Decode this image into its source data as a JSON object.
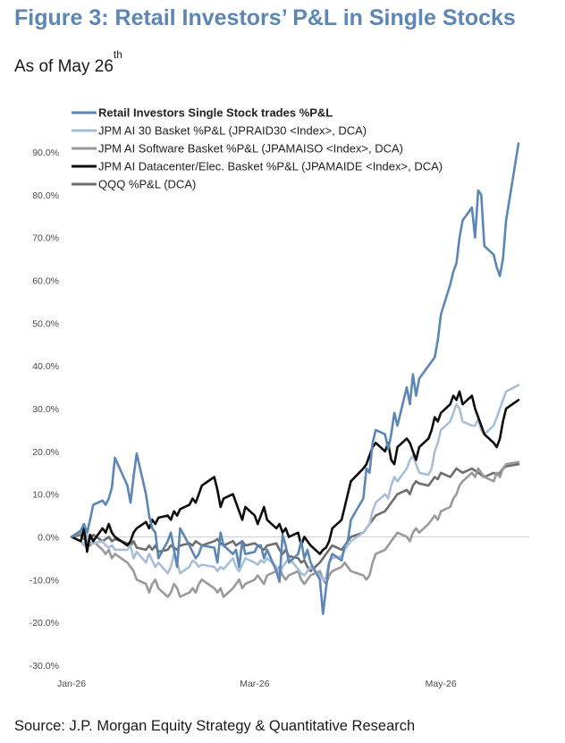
{
  "title": "Figure 3: Retail Investors’ P&L in Single Stocks",
  "subtitle": "As of May 26",
  "subtitle_sup": "th",
  "source": "Source: J.P. Morgan Equity Strategy & Quantitative Research",
  "chart_data": {
    "type": "line",
    "x": [
      "2026-01-02",
      "2026-01-05",
      "2026-01-06",
      "2026-01-07",
      "2026-01-08",
      "2026-01-09",
      "2026-01-12",
      "2026-01-13",
      "2026-01-14",
      "2026-01-15",
      "2026-01-16",
      "2026-01-20",
      "2026-01-21",
      "2026-01-22",
      "2026-01-23",
      "2026-01-26",
      "2026-01-27",
      "2026-01-28",
      "2026-01-29",
      "2026-01-30",
      "2026-02-02",
      "2026-02-03",
      "2026-02-04",
      "2026-02-05",
      "2026-02-06",
      "2026-02-09",
      "2026-02-10",
      "2026-02-11",
      "2026-02-12",
      "2026-02-13",
      "2026-02-17",
      "2026-02-18",
      "2026-02-19",
      "2026-02-20",
      "2026-02-23",
      "2026-02-24",
      "2026-02-25",
      "2026-02-26",
      "2026-02-27",
      "2026-03-02",
      "2026-03-03",
      "2026-03-04",
      "2026-03-05",
      "2026-03-06",
      "2026-03-09",
      "2026-03-10",
      "2026-03-11",
      "2026-03-12",
      "2026-03-13",
      "2026-03-16",
      "2026-03-17",
      "2026-03-18",
      "2026-03-19",
      "2026-03-20",
      "2026-03-23",
      "2026-03-24",
      "2026-03-25",
      "2026-03-26",
      "2026-03-27",
      "2026-03-30",
      "2026-03-31",
      "2026-04-01",
      "2026-04-02",
      "2026-04-06",
      "2026-04-07",
      "2026-04-08",
      "2026-04-09",
      "2026-04-10",
      "2026-04-13",
      "2026-04-14",
      "2026-04-15",
      "2026-04-16",
      "2026-04-17",
      "2026-04-20",
      "2026-04-21",
      "2026-04-22",
      "2026-04-23",
      "2026-04-24",
      "2026-04-27",
      "2026-04-28",
      "2026-04-29",
      "2026-04-30",
      "2026-05-01",
      "2026-05-04",
      "2026-05-05",
      "2026-05-06",
      "2026-05-07",
      "2026-05-08",
      "2026-05-11",
      "2026-05-12",
      "2026-05-13",
      "2026-05-14",
      "2026-05-15",
      "2026-05-18",
      "2026-05-19",
      "2026-05-20",
      "2026-05-21",
      "2026-05-22",
      "2026-05-26"
    ],
    "series": [
      {
        "name": "Retail Investors Single Stock trades %P&L",
        "color": "#5b86b5",
        "values": [
          0.0,
          1.5,
          3.0,
          1.0,
          4.0,
          7.5,
          8.5,
          7.5,
          9.0,
          11.5,
          18.5,
          12.0,
          8.0,
          14.0,
          19.5,
          10.0,
          5.0,
          2.0,
          1.0,
          -5.0,
          -1.0,
          1.0,
          -3.0,
          -7.0,
          2.0,
          -2.0,
          -3.5,
          -5.0,
          -4.0,
          -2.0,
          -2.5,
          -6.0,
          1.0,
          -2.0,
          -4.0,
          -3.0,
          -7.0,
          -1.0,
          -4.0,
          -3.5,
          -2.0,
          -2.0,
          -5.0,
          -3.0,
          -8.0,
          -10.5,
          0.5,
          -2.0,
          -6.0,
          -4.0,
          -1.0,
          -5.0,
          -3.0,
          -6.0,
          -10.0,
          -18.0,
          -12.0,
          -6.0,
          -4.0,
          -5.5,
          -2.0,
          -1.0,
          4.0,
          9.0,
          16.0,
          15.0,
          22.0,
          25.0,
          24.0,
          20.5,
          24.0,
          29.0,
          26.0,
          35.0,
          31.0,
          38.0,
          33.0,
          37.0,
          40.0,
          41.0,
          42.0,
          46.0,
          52.0,
          59.0,
          62.0,
          64.0,
          70.0,
          74.0,
          77.0,
          70.0,
          81.0,
          80.0,
          68.0,
          66.0,
          63.0,
          61.0,
          65.0,
          74.0,
          92.0
        ]
      },
      {
        "name": "JPM AI 30 Basket %P&L (JPRAID30 <Index>, DCA)",
        "color": "#a9bfd9",
        "values": [
          0.0,
          -1.0,
          -2.0,
          0.5,
          -1.5,
          -1.5,
          -1.0,
          -2.0,
          -2.5,
          -2.0,
          -3.0,
          -3.0,
          -2.0,
          -5.0,
          -3.5,
          -6.0,
          -4.0,
          -5.5,
          -7.0,
          -6.0,
          -8.5,
          -7.0,
          -4.0,
          -6.0,
          -8.5,
          -7.0,
          -5.5,
          -6.0,
          -7.0,
          -6.5,
          -7.0,
          -8.0,
          -7.0,
          -7.5,
          -5.0,
          -7.0,
          -8.0,
          -6.5,
          -5.0,
          -6.0,
          -6.5,
          -5.5,
          -6.0,
          -5.0,
          -7.0,
          -8.5,
          -7.0,
          -6.0,
          -5.0,
          -7.5,
          -8.5,
          -9.0,
          -8.0,
          -7.0,
          -9.0,
          -10.0,
          -9.5,
          -6.0,
          -5.0,
          -4.5,
          -3.0,
          -2.0,
          -1.0,
          1.0,
          2.0,
          3.0,
          6.0,
          8.0,
          10.0,
          9.0,
          12.0,
          14.0,
          13.0,
          16.0,
          18.0,
          19.0,
          17.0,
          15.0,
          14.5,
          16.0,
          20.0,
          22.0,
          25.0,
          27.0,
          29.0,
          31.0,
          30.0,
          27.0,
          26.0,
          26.0,
          27.5,
          25.0,
          24.0,
          26.0,
          28.0,
          30.0,
          32.0,
          34.0,
          35.5
        ]
      },
      {
        "name": "JPM AI Software Basket %P&L (JPAMAISO <Index>, DCA)",
        "color": "#9a9a9a",
        "values": [
          0.0,
          1.0,
          0.0,
          -1.0,
          -2.0,
          -1.0,
          -3.0,
          -4.0,
          -3.0,
          -5.0,
          -4.0,
          -6.0,
          -7.0,
          -8.0,
          -10.0,
          -11.0,
          -13.0,
          -11.0,
          -10.0,
          -12.0,
          -14.0,
          -13.0,
          -11.0,
          -12.0,
          -14.0,
          -13.0,
          -12.0,
          -13.0,
          -11.0,
          -10.0,
          -12.0,
          -13.0,
          -12.0,
          -14.0,
          -12.0,
          -11.0,
          -10.0,
          -12.0,
          -11.0,
          -10.0,
          -9.0,
          -10.0,
          -11.0,
          -9.0,
          -8.0,
          -7.0,
          -9.0,
          -10.0,
          -9.0,
          -8.0,
          -10.0,
          -11.0,
          -10.0,
          -9.0,
          -8.0,
          -10.0,
          -11.0,
          -9.0,
          -8.0,
          -7.0,
          -6.0,
          -7.0,
          -8.0,
          -9.0,
          -10.0,
          -9.0,
          -6.0,
          -4.0,
          -3.0,
          -2.0,
          -1.0,
          0.0,
          1.0,
          0.0,
          -1.0,
          1.0,
          2.0,
          1.0,
          3.0,
          4.0,
          5.0,
          4.0,
          6.0,
          7.0,
          9.0,
          10.0,
          12.0,
          13.0,
          15.0,
          14.0,
          16.0,
          15.0,
          14.0,
          13.0,
          15.0,
          14.0,
          16.0,
          17.0,
          17.5
        ]
      },
      {
        "name": "JPM AI Datacenter/Elec. Basket %P&L (JPAMAIDE <Index>, DCA)",
        "color": "#0d0d0d",
        "values": [
          0.0,
          -1.0,
          2.0,
          -3.5,
          0.5,
          -1.0,
          2.0,
          1.0,
          3.0,
          1.0,
          0.0,
          -2.0,
          -1.0,
          1.0,
          2.0,
          3.5,
          2.0,
          4.0,
          3.0,
          4.5,
          5.0,
          4.0,
          6.0,
          5.0,
          6.5,
          7.5,
          9.0,
          8.0,
          10.0,
          12.0,
          14.0,
          11.0,
          7.0,
          9.0,
          10.0,
          8.0,
          6.0,
          4.0,
          7.0,
          5.0,
          3.0,
          5.0,
          7.0,
          4.0,
          2.0,
          3.0,
          1.0,
          2.0,
          0.0,
          1.0,
          -2.0,
          0.0,
          -1.0,
          -2.0,
          -4.0,
          -3.0,
          -2.5,
          -1.0,
          2.0,
          4.0,
          7.0,
          10.0,
          13.0,
          16.0,
          17.0,
          19.0,
          21.0,
          22.0,
          20.0,
          22.0,
          18.0,
          17.0,
          21.0,
          23.0,
          22.0,
          20.0,
          18.0,
          21.0,
          23.0,
          25.0,
          28.0,
          27.0,
          29.0,
          31.0,
          33.0,
          32.0,
          34.0,
          31.0,
          33.0,
          30.0,
          28.0,
          26.0,
          24.0,
          22.0,
          21.0,
          23.0,
          27.0,
          30.0,
          32.0
        ]
      },
      {
        "name": "QQQ %P&L (DCA)",
        "color": "#6e6e6e",
        "values": [
          0.0,
          0.5,
          -0.5,
          0.0,
          -0.5,
          0.5,
          -1.0,
          -0.5,
          0.0,
          -1.0,
          -0.5,
          -1.5,
          -2.0,
          -1.0,
          -2.5,
          -3.0,
          -2.0,
          -3.0,
          -2.0,
          -3.5,
          -3.0,
          -2.0,
          -2.5,
          -3.0,
          -2.0,
          -1.5,
          -2.0,
          -1.0,
          -1.5,
          -2.0,
          -1.0,
          -0.5,
          -1.5,
          -2.0,
          -1.0,
          -2.0,
          -1.5,
          -1.0,
          -2.0,
          -1.5,
          -2.0,
          -2.5,
          -3.0,
          -2.0,
          -1.5,
          -3.0,
          -4.0,
          -3.0,
          -4.5,
          -5.0,
          -6.0,
          -5.5,
          -7.0,
          -8.0,
          -6.0,
          -5.0,
          -4.0,
          -3.0,
          -2.0,
          -3.0,
          -2.0,
          -1.0,
          0.0,
          1.0,
          2.0,
          3.0,
          4.0,
          5.0,
          6.0,
          7.0,
          8.0,
          9.0,
          10.0,
          11.0,
          10.0,
          12.0,
          13.0,
          12.5,
          12.0,
          13.0,
          14.0,
          13.5,
          15.0,
          14.0,
          15.0,
          16.0,
          15.5,
          15.0,
          16.0,
          15.5,
          15.0,
          14.5,
          14.0,
          15.0,
          14.5,
          15.0,
          16.0,
          16.5,
          17.0
        ]
      }
    ],
    "x_tick_labels": [
      "Jan-26",
      "Mar-26",
      "May-26"
    ],
    "x_tick_dates": [
      "2026-01-02",
      "2026-03-02",
      "2026-05-01"
    ],
    "ylim": [
      -30,
      90
    ],
    "y_tick_values": [
      -30,
      -20,
      -10,
      0,
      10,
      20,
      30,
      40,
      50,
      60,
      70,
      80,
      90
    ],
    "y_tick_labels": [
      "-30.0%",
      "-20.0%",
      "-10.0%",
      "0.0%",
      "10.0%",
      "20.0%",
      "30.0%",
      "40.0%",
      "50.0%",
      "60.0%",
      "70.0%",
      "80.0%",
      "90.0%"
    ],
    "title": "",
    "xlabel": "",
    "ylabel": "",
    "grid": false,
    "legend_position": "top-left"
  }
}
